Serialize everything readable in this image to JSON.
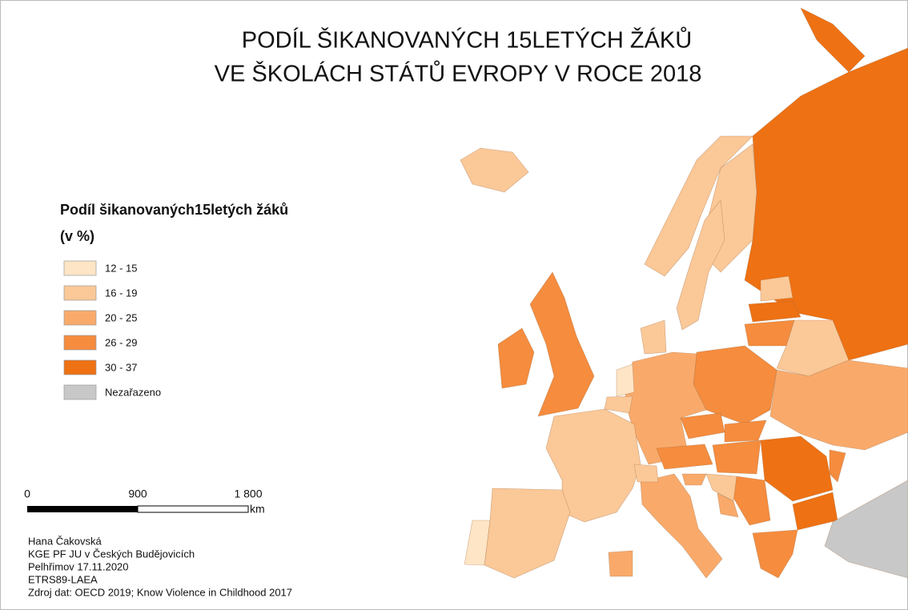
{
  "title": [
    "PODÍL ŠIKANOVANÝCH 15LETÝCH ŽÁKŮ",
    "VE ŠKOLÁCH STÁTŮ EVROPY V ROCE 2018"
  ],
  "legend": {
    "title": [
      "Podíl šikanovaných15letých žáků",
      "(v %)"
    ],
    "items": [
      {
        "label": "12 - 15",
        "color": "#fde5c5"
      },
      {
        "label": "16 - 19",
        "color": "#fbc898"
      },
      {
        "label": "20 - 25",
        "color": "#f9aa6b"
      },
      {
        "label": "26 - 29",
        "color": "#f58c3e"
      },
      {
        "label": "30 - 37",
        "color": "#ee7113"
      },
      {
        "label": "Nezařazeno",
        "color": "#c8c8c8"
      }
    ]
  },
  "scale_bar": {
    "labels": [
      "0",
      "900",
      "1 800"
    ],
    "unit": "km"
  },
  "credits": [
    "Hana Čakovská",
    "KGE PF JU v Českých Budějovicích",
    "Pelhřimov 17.11.2020",
    "ETRS89-LAEA",
    "Zdroj dat: OECD 2019; Know Violence in Childhood 2017"
  ]
}
